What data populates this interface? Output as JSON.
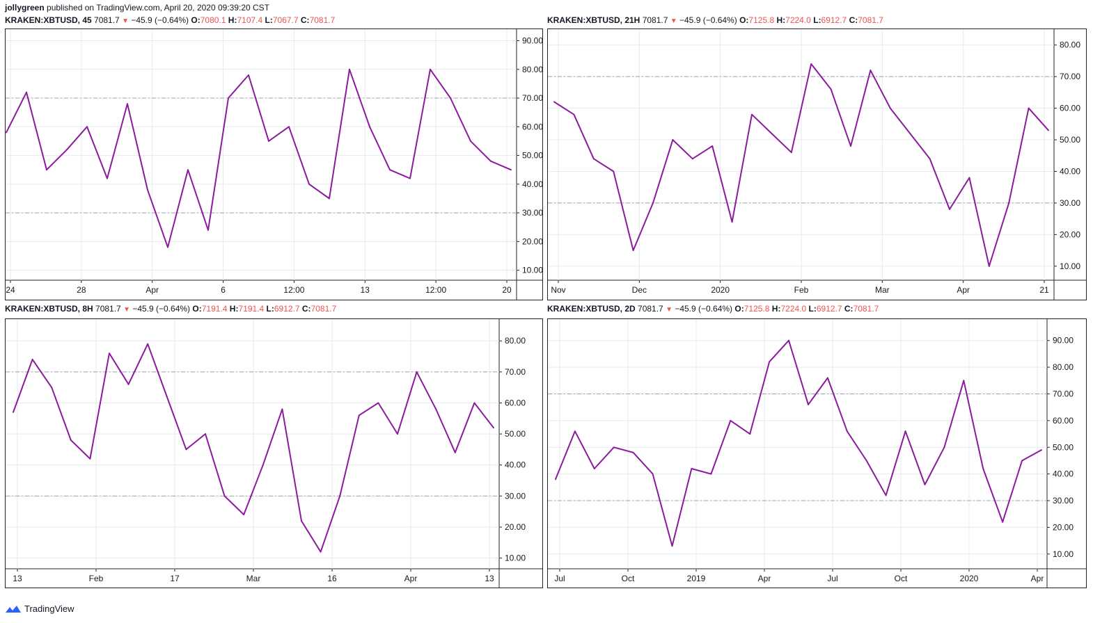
{
  "header": {
    "author": "jollygreen",
    "text": "published on TradingView.com, April 20, 2020 09:39:20 CST"
  },
  "footer": {
    "brand": "TradingView"
  },
  "colors": {
    "line": "#8b1a9c",
    "grid": "#e4eaf0",
    "level": "#9aa4b0",
    "down": "#ef5350"
  },
  "panels": [
    {
      "legend": {
        "symbol": "KRAKEN:XBTUSD, 45",
        "last": "7081.7",
        "arrow": "▼",
        "change": "−45.9 (−0.64%)",
        "o_label": "O:",
        "o": "7080.1",
        "h_label": "H:",
        "h": "7107.4",
        "l_label": "L:",
        "l": "7067.7",
        "c_label": "C:",
        "c": "7081.7"
      }
    },
    {
      "legend": {
        "symbol": "KRAKEN:XBTUSD, 21H",
        "last": "7081.7",
        "arrow": "▼",
        "change": "−45.9 (−0.64%)",
        "o_label": "O:",
        "o": "7125.8",
        "h_label": "H:",
        "h": "7224.0",
        "l_label": "L:",
        "l": "6912.7",
        "c_label": "C:",
        "c": "7081.7"
      }
    },
    {
      "legend": {
        "symbol": "KRAKEN:XBTUSD, 8H",
        "last": "7081.7",
        "arrow": "▼",
        "change": "−45.9 (−0.64%)",
        "o_label": "O:",
        "o": "7191.4",
        "h_label": "H:",
        "h": "7191.4",
        "l_label": "L:",
        "l": "6912.7",
        "c_label": "C:",
        "c": "7081.7"
      }
    },
    {
      "legend": {
        "symbol": "KRAKEN:XBTUSD, 2D",
        "last": "7081.7",
        "arrow": "▼",
        "change": "−45.9 (−0.64%)",
        "o_label": "O:",
        "o": "7125.8",
        "h_label": "H:",
        "h": "7224.0",
        "l_label": "L:",
        "l": "6912.7",
        "c_label": "C:",
        "c": "7081.7"
      }
    }
  ],
  "chart_data": [
    {
      "type": "line",
      "ylim": [
        7,
        94
      ],
      "yticks": [
        "10.00",
        "20.00",
        "30.00",
        "40.00",
        "50.00",
        "60.00",
        "70.00",
        "80.00",
        "90.00"
      ],
      "levels": [
        30,
        70
      ],
      "xticks": [
        "24",
        "28",
        "Apr",
        "6",
        "12:00",
        "13",
        "12:00",
        "20"
      ],
      "x": [
        0,
        4,
        8,
        12,
        16,
        20,
        24,
        28,
        32,
        36,
        40,
        44,
        48,
        52,
        56,
        60,
        64,
        68,
        72,
        76,
        80,
        84,
        88,
        92,
        96,
        100
      ],
      "values": [
        58,
        72,
        45,
        52,
        60,
        42,
        68,
        38,
        18,
        45,
        24,
        70,
        78,
        55,
        60,
        40,
        35,
        80,
        60,
        45,
        42,
        80,
        70,
        55,
        48,
        45
      ],
      "series_name": ""
    },
    {
      "type": "line",
      "ylim": [
        6,
        85
      ],
      "yticks": [
        "10.00",
        "20.00",
        "30.00",
        "40.00",
        "50.00",
        "60.00",
        "70.00",
        "80.00"
      ],
      "levels": [
        30,
        70
      ],
      "xticks": [
        "Nov",
        "Dec",
        "2020",
        "Feb",
        "Mar",
        "Apr",
        "21"
      ],
      "x": [
        0,
        4,
        8,
        12,
        16,
        20,
        24,
        28,
        32,
        36,
        40,
        44,
        48,
        52,
        56,
        60,
        64,
        68,
        72,
        76,
        80,
        84,
        88,
        92,
        96,
        100
      ],
      "values": [
        62,
        58,
        44,
        40,
        15,
        30,
        50,
        44,
        48,
        24,
        58,
        52,
        46,
        74,
        66,
        48,
        72,
        60,
        52,
        44,
        28,
        38,
        10,
        30,
        60,
        53
      ],
      "series_name": ""
    },
    {
      "type": "line",
      "ylim": [
        7,
        87
      ],
      "yticks": [
        "10.00",
        "20.00",
        "30.00",
        "40.00",
        "50.00",
        "60.00",
        "70.00",
        "80.00"
      ],
      "levels": [
        30,
        70
      ],
      "xticks": [
        "13",
        "Feb",
        "17",
        "Mar",
        "16",
        "Apr",
        "13"
      ],
      "x": [
        0,
        4,
        8,
        12,
        16,
        20,
        24,
        28,
        32,
        36,
        40,
        44,
        48,
        52,
        56,
        60,
        64,
        68,
        72,
        76,
        80,
        84,
        88,
        92,
        96,
        100
      ],
      "values": [
        57,
        74,
        65,
        48,
        42,
        76,
        66,
        79,
        62,
        45,
        50,
        30,
        24,
        40,
        58,
        22,
        12,
        30,
        56,
        60,
        50,
        70,
        58,
        44,
        60,
        52
      ],
      "series_name": ""
    },
    {
      "type": "line",
      "ylim": [
        5,
        98
      ],
      "yticks": [
        "10.00",
        "20.00",
        "30.00",
        "40.00",
        "50.00",
        "60.00",
        "70.00",
        "80.00",
        "90.00"
      ],
      "levels": [
        30,
        70
      ],
      "xticks": [
        "Jul",
        "Oct",
        "2019",
        "Apr",
        "Jul",
        "Oct",
        "2020",
        "Apr"
      ],
      "x": [
        0,
        4,
        8,
        12,
        16,
        20,
        24,
        28,
        32,
        36,
        40,
        44,
        48,
        52,
        56,
        60,
        64,
        68,
        72,
        76,
        80,
        84,
        88,
        92,
        96,
        100
      ],
      "values": [
        38,
        56,
        42,
        50,
        48,
        40,
        13,
        42,
        40,
        60,
        55,
        82,
        90,
        66,
        76,
        56,
        45,
        32,
        56,
        36,
        50,
        75,
        42,
        22,
        45,
        49
      ],
      "series_name": ""
    }
  ]
}
